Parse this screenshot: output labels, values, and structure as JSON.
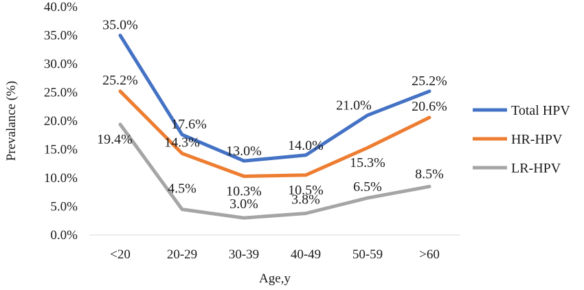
{
  "chart_data": {
    "type": "line",
    "title": "",
    "xlabel": "Age,y",
    "ylabel": "Prevalance (%)",
    "categories": [
      "<20",
      "20-29",
      "30-39",
      "40-49",
      "50-59",
      ">60"
    ],
    "ylim": [
      0,
      40
    ],
    "yticks": [
      "0.0%",
      "5.0%",
      "10.0%",
      "15.0%",
      "20.0%",
      "25.0%",
      "30.0%",
      "35.0%",
      "40.0%"
    ],
    "grid": false,
    "legend_position": "right",
    "series": [
      {
        "name": "Total HPV",
        "color": "#4472C4",
        "values": [
          35.0,
          17.6,
          13.0,
          14.0,
          21.0,
          25.2
        ],
        "labels": [
          "35.0%",
          "17.6%",
          "13.0%",
          "14.0%",
          "21.0%",
          "25.2%"
        ]
      },
      {
        "name": "HR-HPV",
        "color": "#ED7D31",
        "values": [
          25.2,
          14.3,
          10.3,
          10.5,
          15.3,
          20.6
        ],
        "labels": [
          "25.2%",
          "14.3%",
          "10.3%",
          "10.5%",
          "15.3%",
          "20.6%"
        ]
      },
      {
        "name": "LR-HPV",
        "color": "#A5A5A5",
        "values": [
          19.4,
          4.5,
          3.0,
          3.8,
          6.5,
          8.5
        ],
        "labels": [
          "19.4%",
          "4.5%",
          "3.0%",
          "3.8%",
          "6.5%",
          "8.5%"
        ]
      }
    ]
  }
}
